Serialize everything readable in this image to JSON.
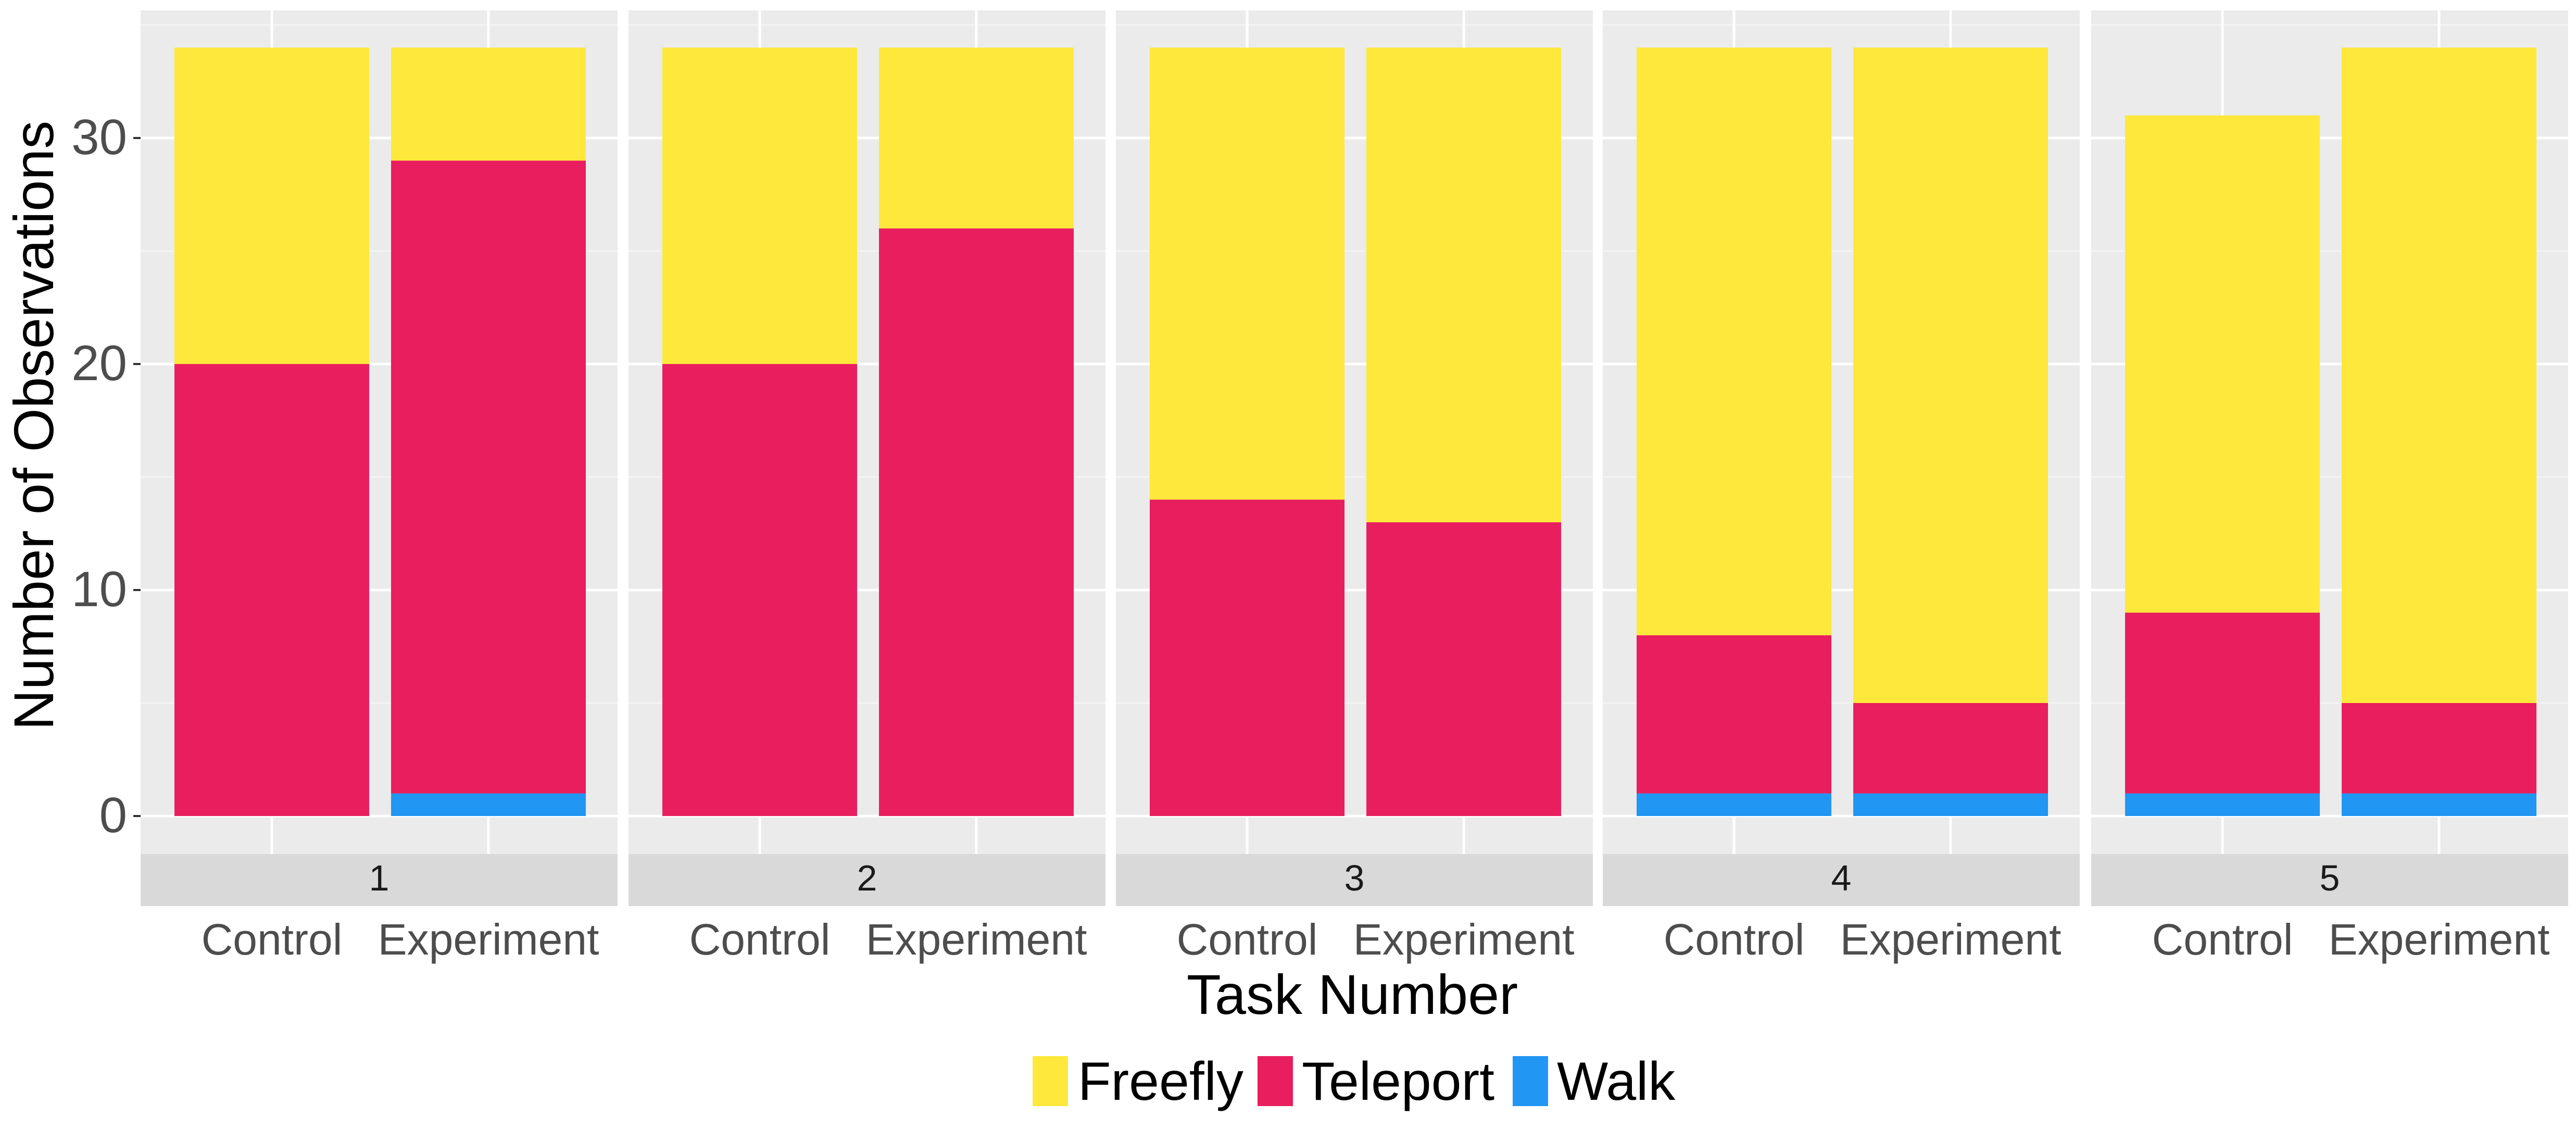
{
  "chart_data": {
    "type": "bar",
    "stacked": true,
    "faceted_by": "task",
    "xlabel": "Task Number",
    "ylabel": "Number of Observations",
    "ylim": [
      0,
      35
    ],
    "yticks": [
      0,
      10,
      20,
      30
    ],
    "grid": true,
    "legend_position": "bottom",
    "categories": [
      "Control",
      "Experiment"
    ],
    "stack_order": [
      "Walk",
      "Teleport",
      "Freefly"
    ],
    "legend": [
      {
        "name": "Freefly",
        "color": "#FDE83B"
      },
      {
        "name": "Teleport",
        "color": "#E91E5E"
      },
      {
        "name": "Walk",
        "color": "#2196F3"
      }
    ],
    "facets": [
      {
        "label": "1",
        "bars": [
          {
            "category": "Control",
            "Walk": 0,
            "Teleport": 20,
            "Freefly": 14
          },
          {
            "category": "Experiment",
            "Walk": 1,
            "Teleport": 28,
            "Freefly": 5
          }
        ]
      },
      {
        "label": "2",
        "bars": [
          {
            "category": "Control",
            "Walk": 0,
            "Teleport": 20,
            "Freefly": 14
          },
          {
            "category": "Experiment",
            "Walk": 0,
            "Teleport": 26,
            "Freefly": 8
          }
        ]
      },
      {
        "label": "3",
        "bars": [
          {
            "category": "Control",
            "Walk": 0,
            "Teleport": 14,
            "Freefly": 20
          },
          {
            "category": "Experiment",
            "Walk": 0,
            "Teleport": 13,
            "Freefly": 21
          }
        ]
      },
      {
        "label": "4",
        "bars": [
          {
            "category": "Control",
            "Walk": 1,
            "Teleport": 7,
            "Freefly": 26
          },
          {
            "category": "Experiment",
            "Walk": 1,
            "Teleport": 4,
            "Freefly": 29
          }
        ]
      },
      {
        "label": "5",
        "bars": [
          {
            "category": "Control",
            "Walk": 1,
            "Teleport": 8,
            "Freefly": 22
          },
          {
            "category": "Experiment",
            "Walk": 1,
            "Teleport": 4,
            "Freefly": 29
          }
        ]
      }
    ]
  }
}
